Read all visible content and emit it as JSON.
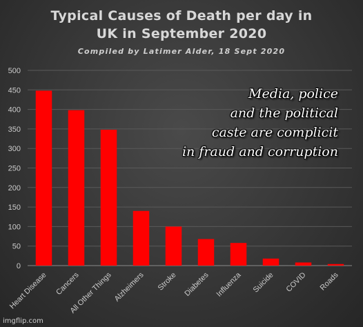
{
  "chart_data": {
    "type": "bar",
    "title_lines": [
      "Typical Causes of Death per day in",
      "UK in September 2020"
    ],
    "subtitle": "Compiled by Latimer Alder, 18 Sept 2020",
    "categories": [
      "Heart Disease",
      "Cancers",
      "All Other Things",
      "Alzheimers",
      "Stroke",
      "Diabetes",
      "Influenza",
      "Suicide",
      "COVID",
      "Roads"
    ],
    "values": [
      448,
      398,
      348,
      140,
      100,
      68,
      58,
      18,
      8,
      4
    ],
    "ylim": [
      0,
      500
    ],
    "yticks": [
      0,
      50,
      100,
      150,
      200,
      250,
      300,
      350,
      400,
      450,
      500
    ],
    "grid": true,
    "bar_color": "#ff0000",
    "xlabel": "",
    "ylabel": ""
  },
  "overlay_text": [
    "Media, police",
    "and the political",
    "caste are complicit",
    "in fraud and corruption"
  ],
  "watermark": "imgflip.com"
}
